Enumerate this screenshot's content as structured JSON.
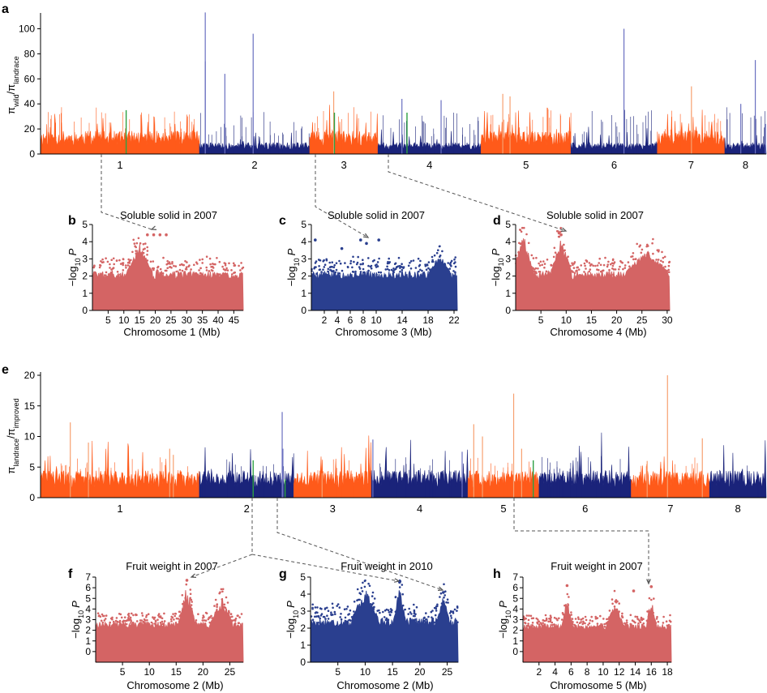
{
  "panels": {
    "a": {
      "label": "a",
      "ylabel_main": "π",
      "ylabel_sub1": "wild",
      "ylabel_sub2": "landrace"
    },
    "b": {
      "label": "b",
      "title": "Soluble solid in 2007",
      "xlabel": "Chromosome 1 (Mb)"
    },
    "c": {
      "label": "c",
      "title": "Soluble solid in 2007",
      "xlabel": "Chromosome 3 (Mb)"
    },
    "d": {
      "label": "d",
      "title": "Soluble solid in 2007",
      "xlabel": "Chromosome 4 (Mb)"
    },
    "e": {
      "label": "e",
      "ylabel_main": "π",
      "ylabel_sub1": "landrace",
      "ylabel_sub2": "improved"
    },
    "f": {
      "label": "f",
      "title": "Fruit weight in 2007",
      "xlabel": "Chromosome 2 (Mb)"
    },
    "g": {
      "label": "g",
      "title": "Fruit weight in 2010",
      "xlabel": "Chromosome 2 (Mb)"
    },
    "h": {
      "label": "h",
      "title": "Fruit weight in 2007",
      "xlabel": "Chromosome 5 (Mb)"
    }
  },
  "manhattan_ylabel": {
    "prefix": "−log",
    "sub": "10",
    "var": "P"
  },
  "colors": {
    "orange": "#ff5a1a",
    "orange_peak": "#f7a070",
    "navy": "#1a237a",
    "navy_peak": "#6a70c0",
    "green": "#2ea043",
    "red": "#d46464",
    "blue": "#2a3f8f",
    "connector": "#555555"
  },
  "chart_data": [
    {
      "id": "a",
      "type": "area",
      "ylim": [
        0,
        110
      ],
      "yticks": [
        "0",
        "20",
        "40",
        "60",
        "80",
        "100"
      ],
      "yticks_values": [
        0,
        20,
        40,
        60,
        80,
        100
      ],
      "chromosomes": [
        "1",
        "2",
        "3",
        "4",
        "5",
        "6",
        "7",
        "8"
      ],
      "chromosome_bounds": [
        0,
        0.219,
        0.371,
        0.465,
        0.607,
        0.731,
        0.85,
        0.943,
        1.0
      ],
      "chromosome_colors": [
        "orange",
        "navy",
        "orange",
        "navy",
        "orange",
        "navy",
        "orange",
        "navy"
      ],
      "peaks": [
        {
          "x": 0.227,
          "y": 113
        },
        {
          "x": 0.227,
          "y": 74
        },
        {
          "x": 0.254,
          "y": 64
        },
        {
          "x": 0.293,
          "y": 96
        },
        {
          "x": 0.404,
          "y": 50
        },
        {
          "x": 0.498,
          "y": 44
        },
        {
          "x": 0.552,
          "y": 43
        },
        {
          "x": 0.637,
          "y": 48
        },
        {
          "x": 0.647,
          "y": 46
        },
        {
          "x": 0.804,
          "y": 100
        },
        {
          "x": 0.897,
          "y": 54
        },
        {
          "x": 0.965,
          "y": 40
        },
        {
          "x": 0.985,
          "y": 75
        },
        {
          "x": 0.999,
          "y": 24
        }
      ],
      "green_peaks": [
        {
          "x": 0.118,
          "y": 35
        },
        {
          "x": 0.405,
          "y": 33
        },
        {
          "x": 0.505,
          "y": 33
        }
      ]
    },
    {
      "id": "b",
      "type": "scatter",
      "color": "red",
      "xlim": [
        0,
        48
      ],
      "ylim": [
        0,
        5
      ],
      "xticks": [
        "5",
        "10",
        "15",
        "20",
        "25",
        "30",
        "35",
        "40",
        "45"
      ],
      "xticks_values": [
        5,
        10,
        15,
        20,
        25,
        30,
        35,
        40,
        45
      ],
      "yticks": [
        "0",
        "1",
        "2",
        "3",
        "4",
        "5"
      ],
      "yticks_values": [
        0,
        1,
        2,
        3,
        4,
        5
      ],
      "base_height": 2.3,
      "hotspots": [
        {
          "x": 15,
          "peak": 3.9,
          "width": 4
        }
      ],
      "top_points": [
        {
          "x": 17.5,
          "y": 4.4
        },
        {
          "x": 19.5,
          "y": 4.4
        },
        {
          "x": 21.5,
          "y": 4.4
        },
        {
          "x": 23.5,
          "y": 4.4
        }
      ]
    },
    {
      "id": "c",
      "type": "scatter",
      "color": "blue",
      "xlim": [
        0,
        22.5
      ],
      "ylim": [
        0,
        5
      ],
      "xticks": [
        "2",
        "4",
        "6",
        "8",
        "10",
        "14",
        "18",
        "22"
      ],
      "xticks_values": [
        2,
        4,
        6,
        8,
        10,
        14,
        18,
        22
      ],
      "yticks": [
        "0",
        "1",
        "2",
        "3",
        "4",
        "5"
      ],
      "yticks_values": [
        0,
        1,
        2,
        3,
        4,
        5
      ],
      "base_height": 2.3,
      "hotspots": [
        {
          "x": 19.8,
          "peak": 3.3,
          "width": 1.5
        }
      ],
      "top_points": [
        {
          "x": 0.6,
          "y": 4.1
        },
        {
          "x": 7.6,
          "y": 4.1
        },
        {
          "x": 8.5,
          "y": 3.9
        },
        {
          "x": 10.4,
          "y": 4.1
        },
        {
          "x": 4.7,
          "y": 3.6
        }
      ]
    },
    {
      "id": "d",
      "type": "scatter",
      "color": "red",
      "xlim": [
        0,
        30.5
      ],
      "ylim": [
        0,
        5
      ],
      "xticks": [
        "5",
        "10",
        "15",
        "20",
        "25",
        "30"
      ],
      "xticks_values": [
        5,
        10,
        15,
        20,
        25,
        30
      ],
      "yticks": [
        "0",
        "1",
        "2",
        "3",
        "4",
        "5"
      ],
      "yticks_values": [
        0,
        1,
        2,
        3,
        4,
        5
      ],
      "base_height": 2.3,
      "hotspots": [
        {
          "x": 1.5,
          "peak": 4.5,
          "width": 2
        },
        {
          "x": 9,
          "peak": 4.3,
          "width": 2
        },
        {
          "x": 26,
          "peak": 3.6,
          "width": 4
        }
      ],
      "top_points": [
        {
          "x": 8.6,
          "y": 4.5
        },
        {
          "x": 9.0,
          "y": 4.4
        }
      ]
    },
    {
      "id": "e",
      "type": "area",
      "ylim": [
        0,
        20
      ],
      "yticks": [
        "0",
        "5",
        "10",
        "15",
        "20"
      ],
      "yticks_values": [
        0,
        5,
        10,
        15,
        20
      ],
      "chromosomes": [
        "1",
        "2",
        "3",
        "4",
        "5",
        "6",
        "7",
        "8"
      ],
      "chromosome_bounds": [
        0,
        0.219,
        0.349,
        0.456,
        0.589,
        0.687,
        0.814,
        0.922,
        1.0
      ],
      "chromosome_colors": [
        "orange",
        "navy",
        "orange",
        "navy",
        "orange",
        "navy",
        "orange",
        "navy"
      ],
      "peaks": [
        {
          "x": 0.041,
          "y": 12.3
        },
        {
          "x": 0.066,
          "y": 9
        },
        {
          "x": 0.178,
          "y": 8
        },
        {
          "x": 0.183,
          "y": 7
        },
        {
          "x": 0.333,
          "y": 14
        },
        {
          "x": 0.334,
          "y": 8
        },
        {
          "x": 0.388,
          "y": 4
        },
        {
          "x": 0.458,
          "y": 9.5
        },
        {
          "x": 0.581,
          "y": 7.5
        },
        {
          "x": 0.597,
          "y": 12
        },
        {
          "x": 0.609,
          "y": 10
        },
        {
          "x": 0.652,
          "y": 17
        },
        {
          "x": 0.663,
          "y": 8
        },
        {
          "x": 0.836,
          "y": 6
        },
        {
          "x": 0.864,
          "y": 20
        },
        {
          "x": 0.912,
          "y": 9.7
        }
      ],
      "green_peaks": [
        {
          "x": 0.293,
          "y": 6.1
        },
        {
          "x": 0.337,
          "y": 3
        },
        {
          "x": 0.679,
          "y": 6.1
        }
      ]
    },
    {
      "id": "f",
      "type": "scatter",
      "color": "red",
      "xlim": [
        0,
        27.5
      ],
      "ylim": [
        -1,
        7
      ],
      "xticks": [
        "5",
        "10",
        "15",
        "20",
        "25"
      ],
      "xticks_values": [
        5,
        10,
        15,
        20,
        25
      ],
      "yticks": [
        "0",
        "1",
        "2",
        "3",
        "4",
        "5",
        "6",
        "7"
      ],
      "yticks_values": [
        0,
        1,
        2,
        3,
        4,
        5,
        6,
        7
      ],
      "base_height": 2.8,
      "hotspots": [
        {
          "x": 17,
          "peak": 6.4,
          "width": 1.5
        },
        {
          "x": 23.5,
          "peak": 5.2,
          "width": 2
        }
      ],
      "top_points": [
        {
          "x": 17,
          "y": 6.7
        }
      ]
    },
    {
      "id": "g",
      "type": "scatter",
      "color": "blue",
      "xlim": [
        0,
        27
      ],
      "ylim": [
        0,
        5
      ],
      "xticks": [
        "5",
        "10",
        "15",
        "20",
        "25"
      ],
      "xticks_values": [
        5,
        10,
        15,
        20,
        25
      ],
      "yticks": [
        "0",
        "1",
        "2",
        "3",
        "4",
        "5"
      ],
      "yticks_values": [
        0,
        1,
        2,
        3,
        4,
        5
      ],
      "base_height": 2.6,
      "hotspots": [
        {
          "x": 10,
          "peak": 4.4,
          "width": 2.4
        },
        {
          "x": 16.3,
          "peak": 4.6,
          "width": 1
        },
        {
          "x": 24.3,
          "peak": 4.0,
          "width": 1
        }
      ],
      "top_points": [
        {
          "x": 16.3,
          "y": 4.7
        },
        {
          "x": 24.3,
          "y": 4.1
        }
      ]
    },
    {
      "id": "h",
      "type": "scatter",
      "color": "red",
      "xlim": [
        0,
        18.5
      ],
      "ylim": [
        -1,
        7
      ],
      "xticks": [
        "2",
        "4",
        "6",
        "8",
        "10",
        "12",
        "14",
        "16",
        "18"
      ],
      "xticks_values": [
        2,
        4,
        6,
        8,
        10,
        12,
        14,
        16,
        18
      ],
      "yticks": [
        "0",
        "1",
        "2",
        "3",
        "4",
        "5",
        "6",
        "7"
      ],
      "yticks_values": [
        0,
        1,
        2,
        3,
        4,
        5,
        6,
        7
      ],
      "base_height": 2.6,
      "hotspots": [
        {
          "x": 5.5,
          "peak": 5.4,
          "width": 0.6
        },
        {
          "x": 11.5,
          "peak": 4.8,
          "width": 1
        },
        {
          "x": 16,
          "peak": 5.2,
          "width": 0.6
        }
      ],
      "top_points": [
        {
          "x": 5.5,
          "y": 6.2
        },
        {
          "x": 13.8,
          "y": 5.7
        },
        {
          "x": 16,
          "y": 6.1
        }
      ]
    }
  ]
}
